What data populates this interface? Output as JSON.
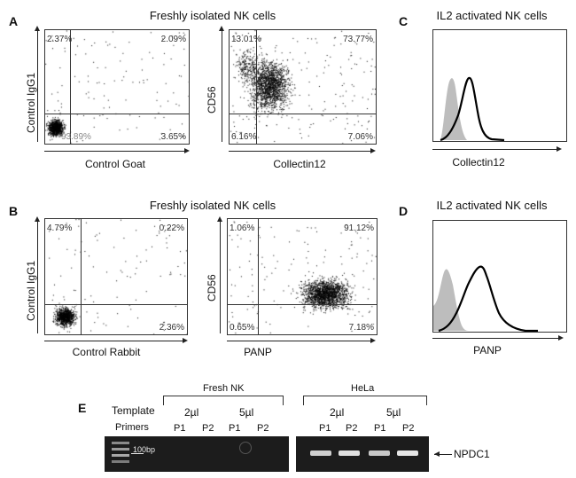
{
  "panels": {
    "A": {
      "letter": "A",
      "title": "Freshly isolated NK cells",
      "left": {
        "ylabel": "Control IgG1",
        "xlabel": "Control Goat",
        "q": {
          "ul": "2.37%",
          "ur": "2.09%",
          "ll": "93.89%",
          "lr": "3.65%"
        }
      },
      "right": {
        "ylabel": "CD56",
        "xlabel": "Collectin12",
        "q": {
          "ul": "13.01%",
          "ur": "73.77%",
          "ll": "6.16%",
          "lr": "7.06%"
        }
      }
    },
    "B": {
      "letter": "B",
      "title": "Freshly isolated NK cells",
      "left": {
        "ylabel": "Control IgG1",
        "xlabel": "Control Rabbit",
        "q": {
          "ul": "4.79%",
          "ur": "0.22%",
          "ll": "",
          "lr": "2.36%"
        }
      },
      "right": {
        "ylabel": "CD56",
        "xlabel": "PANP",
        "q": {
          "ul": "1.06%",
          "ur": "91.12%",
          "ll": "0.65%",
          "lr": "7.18%"
        }
      }
    },
    "C": {
      "letter": "C",
      "title": "IL2 activated NK cells",
      "xlabel": "Collectin12"
    },
    "D": {
      "letter": "D",
      "title": "IL2 activated NK cells",
      "xlabel": "PANP"
    },
    "E": {
      "letter": "E",
      "groups": [
        "Fresh NK",
        "HeLa"
      ],
      "row_template": "Template",
      "row_primers": "Primers",
      "volumes": [
        "2µl",
        "5µl",
        "2µl",
        "5µl"
      ],
      "primers": [
        "P1",
        "P2",
        "P1",
        "P2",
        "P1",
        "P2",
        "P1",
        "P2"
      ],
      "ladder_label": "100bp",
      "band_label": "NPDC1"
    }
  }
}
